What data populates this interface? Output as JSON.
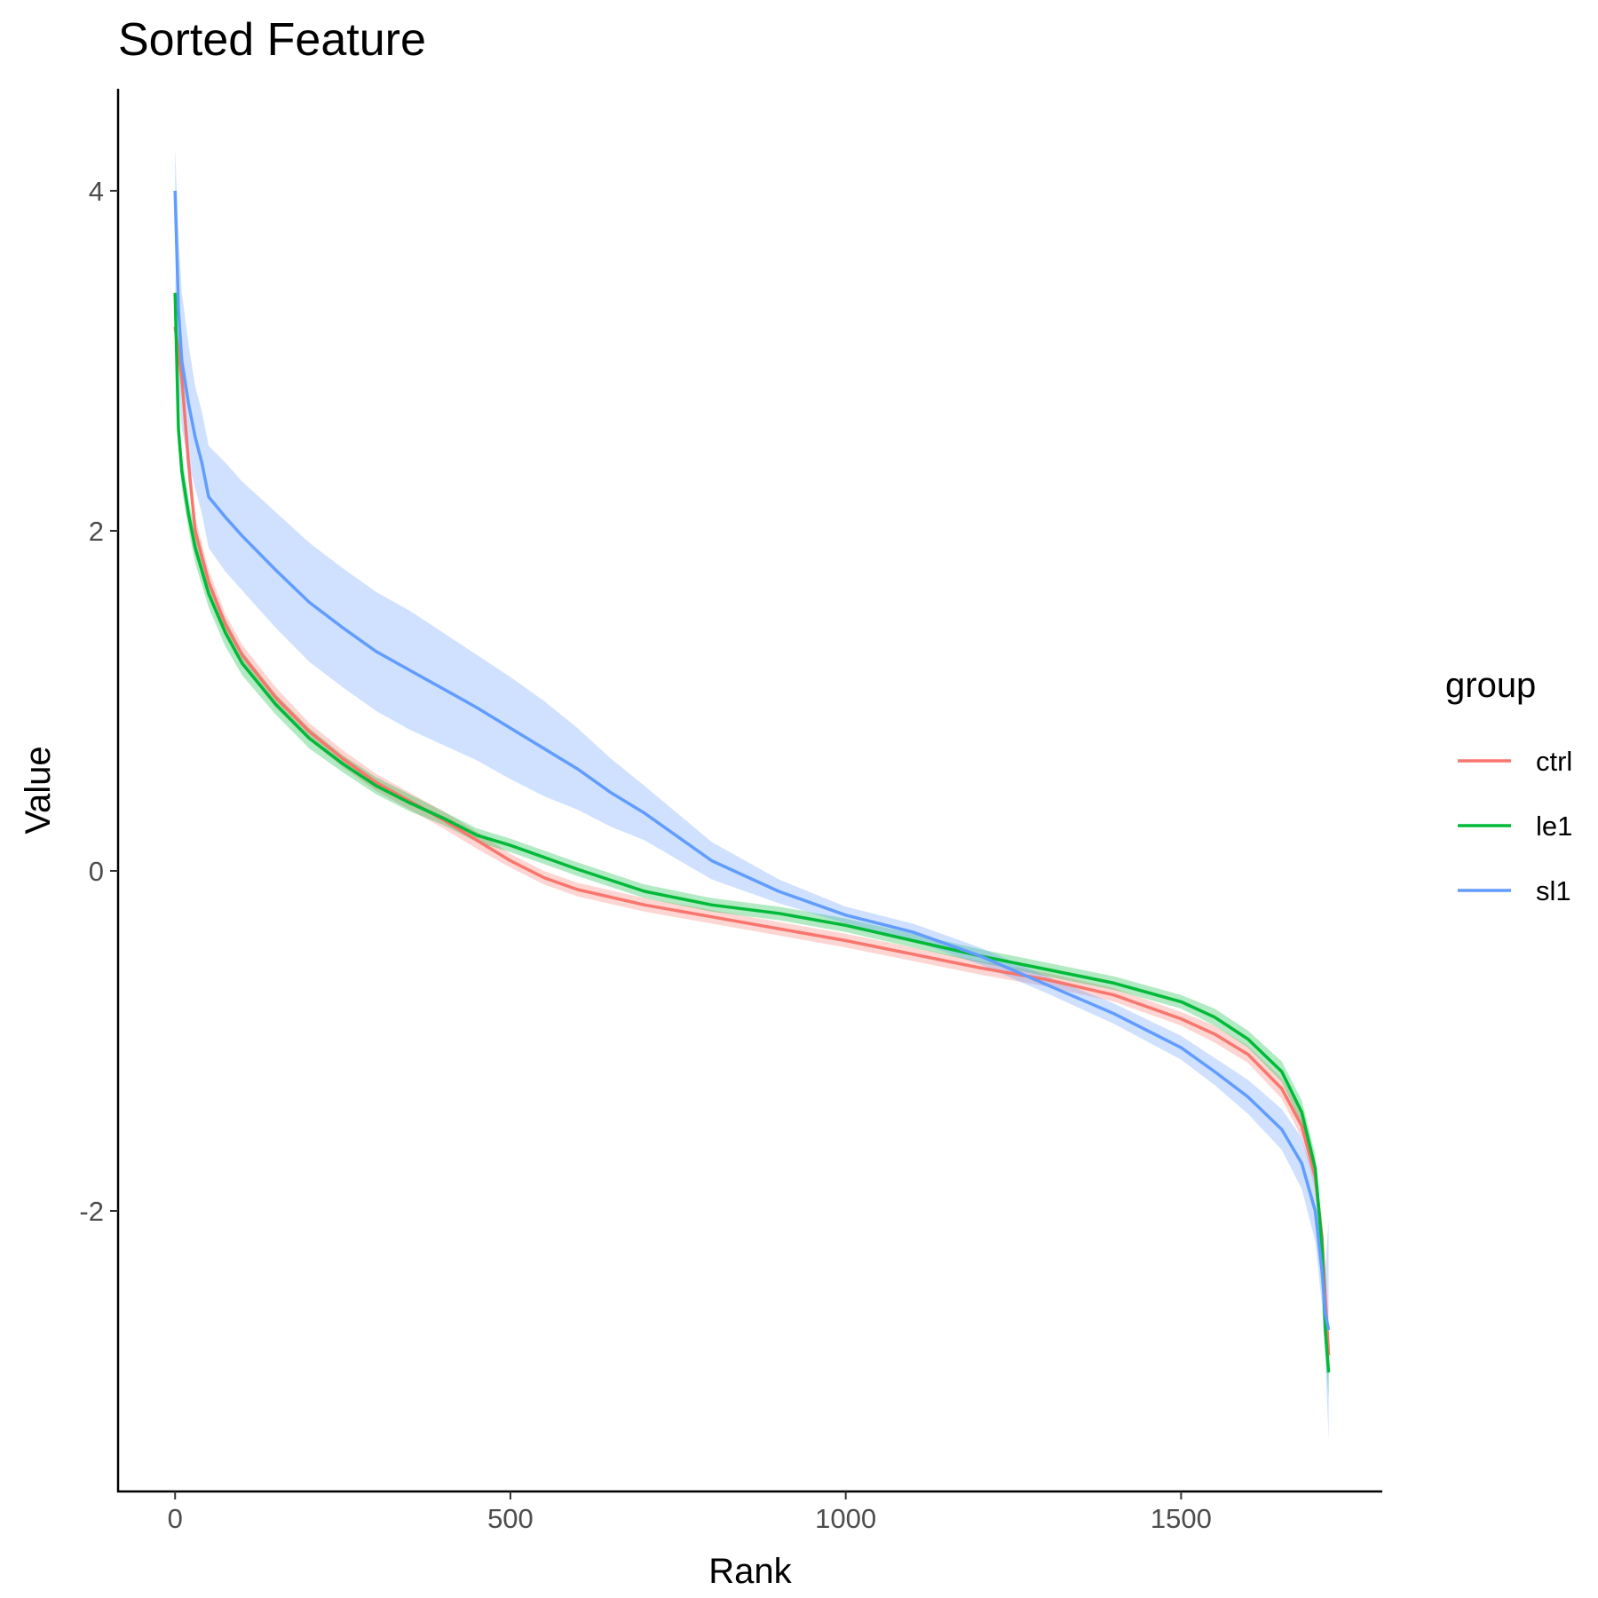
{
  "chart_data": {
    "type": "line",
    "title": "Sorted Feature",
    "xlabel": "Rank",
    "ylabel": "Value",
    "xlim": [
      -85,
      1800
    ],
    "ylim": [
      -3.65,
      4.6
    ],
    "x_ticks": [
      0,
      500,
      1000,
      1500
    ],
    "y_ticks": [
      -2,
      0,
      2,
      4
    ],
    "x_tick_labels": [
      "0",
      "500",
      "1000",
      "1500"
    ],
    "y_tick_labels": [
      "-2",
      "0",
      "2",
      "4"
    ],
    "grid": false,
    "legend": {
      "title": "group",
      "position": "right"
    },
    "series": [
      {
        "name": "ctrl",
        "color": "#F8766D",
        "x": [
          0,
          10,
          20,
          30,
          50,
          75,
          100,
          150,
          200,
          250,
          300,
          350,
          400,
          450,
          500,
          550,
          600,
          700,
          800,
          900,
          1000,
          1100,
          1200,
          1300,
          1400,
          1500,
          1550,
          1600,
          1650,
          1680,
          1700,
          1710,
          1715,
          1720
        ],
        "y": [
          3.2,
          2.9,
          2.4,
          2.0,
          1.7,
          1.45,
          1.27,
          1.02,
          0.82,
          0.66,
          0.52,
          0.41,
          0.3,
          0.18,
          0.06,
          -0.04,
          -0.11,
          -0.2,
          -0.27,
          -0.34,
          -0.41,
          -0.49,
          -0.57,
          -0.64,
          -0.73,
          -0.87,
          -0.96,
          -1.08,
          -1.28,
          -1.5,
          -1.8,
          -2.15,
          -2.5,
          -2.85
        ],
        "band": [
          0.1,
          0.1,
          0.09,
          0.08,
          0.07,
          0.06,
          0.06,
          0.06,
          0.05,
          0.05,
          0.05,
          0.05,
          0.05,
          0.05,
          0.04,
          0.04,
          0.04,
          0.04,
          0.04,
          0.04,
          0.04,
          0.04,
          0.04,
          0.04,
          0.04,
          0.04,
          0.05,
          0.05,
          0.06,
          0.07,
          0.08,
          0.1,
          0.12,
          0.15
        ]
      },
      {
        "name": "le1",
        "color": "#00BA38",
        "x": [
          0,
          5,
          10,
          20,
          30,
          50,
          75,
          100,
          150,
          200,
          250,
          300,
          350,
          400,
          450,
          500,
          550,
          600,
          700,
          800,
          900,
          1000,
          1100,
          1200,
          1300,
          1400,
          1500,
          1550,
          1600,
          1650,
          1680,
          1700,
          1710,
          1715,
          1720
        ],
        "y": [
          3.4,
          2.6,
          2.35,
          2.1,
          1.9,
          1.63,
          1.4,
          1.22,
          0.98,
          0.78,
          0.63,
          0.5,
          0.4,
          0.31,
          0.21,
          0.15,
          0.08,
          0.01,
          -0.12,
          -0.2,
          -0.25,
          -0.32,
          -0.41,
          -0.5,
          -0.58,
          -0.66,
          -0.77,
          -0.86,
          -0.99,
          -1.18,
          -1.42,
          -1.75,
          -2.2,
          -2.7,
          -2.95
        ],
        "band": [
          0.12,
          0.1,
          0.1,
          0.09,
          0.09,
          0.08,
          0.08,
          0.07,
          0.06,
          0.06,
          0.05,
          0.05,
          0.05,
          0.04,
          0.04,
          0.04,
          0.04,
          0.04,
          0.04,
          0.04,
          0.04,
          0.04,
          0.04,
          0.04,
          0.04,
          0.04,
          0.04,
          0.05,
          0.05,
          0.06,
          0.07,
          0.08,
          0.1,
          0.12,
          0.15
        ]
      },
      {
        "name": "sl1",
        "color": "#619CFF",
        "x": [
          0,
          5,
          10,
          20,
          30,
          40,
          50,
          75,
          100,
          150,
          200,
          250,
          300,
          350,
          400,
          450,
          500,
          550,
          600,
          650,
          700,
          800,
          900,
          1000,
          1100,
          1200,
          1300,
          1400,
          1500,
          1550,
          1600,
          1650,
          1680,
          1700,
          1710,
          1715,
          1720
        ],
        "y": [
          4.0,
          3.3,
          3.0,
          2.75,
          2.55,
          2.4,
          2.2,
          2.08,
          1.97,
          1.77,
          1.58,
          1.43,
          1.29,
          1.18,
          1.07,
          0.96,
          0.84,
          0.72,
          0.6,
          0.46,
          0.34,
          0.06,
          -0.12,
          -0.26,
          -0.36,
          -0.5,
          -0.67,
          -0.84,
          -1.04,
          -1.18,
          -1.33,
          -1.52,
          -1.72,
          -2.0,
          -2.35,
          -2.6,
          -2.7
        ],
        "band": [
          0.25,
          0.45,
          0.4,
          0.35,
          0.3,
          0.3,
          0.3,
          0.32,
          0.32,
          0.34,
          0.35,
          0.35,
          0.35,
          0.35,
          0.33,
          0.31,
          0.3,
          0.28,
          0.24,
          0.2,
          0.16,
          0.11,
          0.07,
          0.05,
          0.05,
          0.05,
          0.05,
          0.06,
          0.07,
          0.08,
          0.1,
          0.12,
          0.15,
          0.18,
          0.2,
          0.25,
          0.65
        ]
      }
    ]
  }
}
